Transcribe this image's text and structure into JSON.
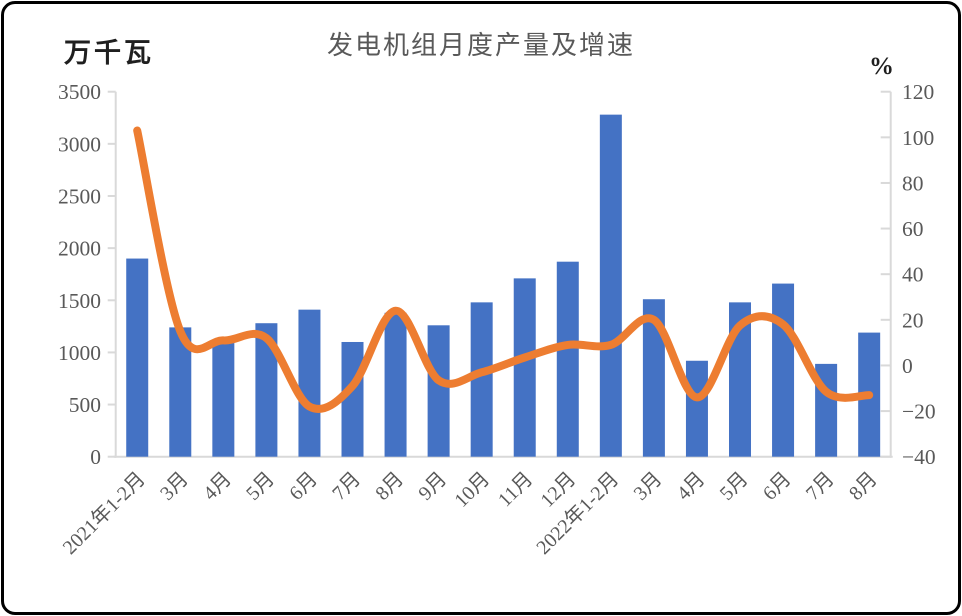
{
  "chart": {
    "title": "发电机组月度产量及增速",
    "left_axis_unit": "万千瓦",
    "right_axis_unit": "%"
  },
  "chart_data": {
    "type": "combo",
    "categories": [
      "2021年1-2月",
      "3月",
      "4月",
      "5月",
      "6月",
      "7月",
      "8月",
      "9月",
      "10月",
      "11月",
      "12月",
      "2022年1-2月",
      "3月",
      "4月",
      "5月",
      "6月",
      "7月",
      "8月"
    ],
    "series": [
      {
        "name": "产量",
        "type": "bar",
        "axis": "left",
        "color": "#4472C4",
        "values": [
          1900,
          1240,
          1090,
          1280,
          1410,
          1100,
          1380,
          1260,
          1480,
          1710,
          1870,
          3280,
          1510,
          920,
          1480,
          1660,
          890,
          1190
        ]
      },
      {
        "name": "增速",
        "type": "line",
        "axis": "right",
        "color": "#ED7D31",
        "values": [
          103,
          15,
          11,
          12,
          -18,
          -9,
          24,
          -6.5,
          -3,
          3.5,
          9,
          9,
          20,
          -14,
          17.5,
          18,
          -11.5,
          -13
        ]
      }
    ],
    "title": "发电机组月度产量及增速",
    "left_axis": {
      "label": "万千瓦",
      "min": 0,
      "max": 3500,
      "step": 500,
      "ticks": [
        0,
        500,
        1000,
        1500,
        2000,
        2500,
        3000,
        3500
      ]
    },
    "right_axis": {
      "label": "%",
      "min": -40,
      "max": 120,
      "step": 20,
      "ticks": [
        -40,
        -20,
        0,
        20,
        40,
        60,
        80,
        100,
        120
      ]
    },
    "legend": "none",
    "grid": false,
    "x_label_rotation_deg": -45
  },
  "style": {
    "bar_color": "#4472C4",
    "line_color": "#ED7D31",
    "axis_line_color": "#D9D9D9",
    "tick_label_color": "#595959",
    "title_color": "#595959",
    "frame_border_color": "#000000"
  }
}
